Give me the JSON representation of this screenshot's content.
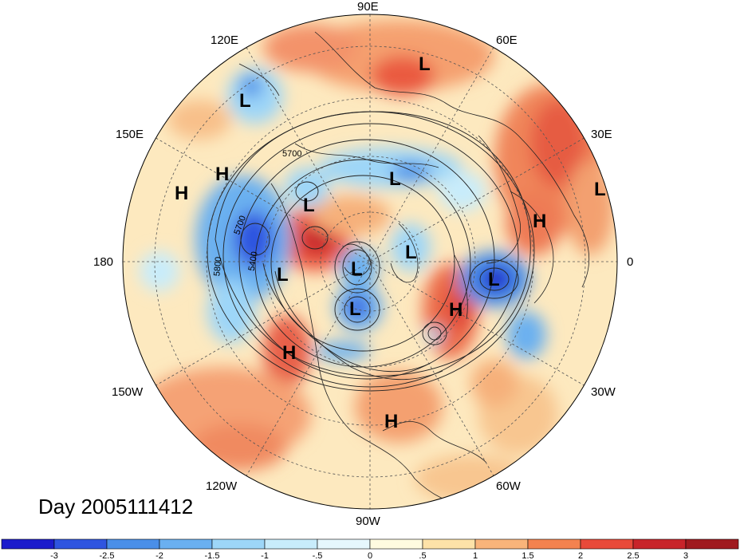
{
  "title": "Day 2005111412",
  "longitude_labels": [
    "90E",
    "60E",
    "30E",
    "0",
    "30W",
    "60W",
    "90W",
    "120W",
    "150W",
    "180",
    "150E",
    "120E"
  ],
  "contour_labels": [
    "5700",
    "5700",
    "5800",
    "5400"
  ],
  "pressure_systems": [
    {
      "type": "L"
    },
    {
      "type": "L"
    },
    {
      "type": "L"
    },
    {
      "type": "L"
    },
    {
      "type": "L"
    },
    {
      "type": "L"
    },
    {
      "type": "L"
    },
    {
      "type": "L"
    },
    {
      "type": "L"
    },
    {
      "type": "L"
    },
    {
      "type": "H"
    },
    {
      "type": "H"
    },
    {
      "type": "H"
    },
    {
      "type": "H"
    },
    {
      "type": "H"
    },
    {
      "type": "H"
    }
  ],
  "colorbar": {
    "ticks": [
      "-3",
      "-2.5",
      "-2",
      "-1.5",
      "-1",
      "-.5",
      "0",
      ".5",
      "1",
      "1.5",
      "2",
      "2.5",
      "3"
    ],
    "colors": [
      "#1c1ccc",
      "#2f55e0",
      "#4a8fe8",
      "#6ab0f0",
      "#9dd6f8",
      "#c8ecfb",
      "#e6f7fd",
      "#fffbe0",
      "#fde2a8",
      "#f9b47a",
      "#f3824f",
      "#e84a3a",
      "#c8242a",
      "#a01a1e"
    ]
  }
}
